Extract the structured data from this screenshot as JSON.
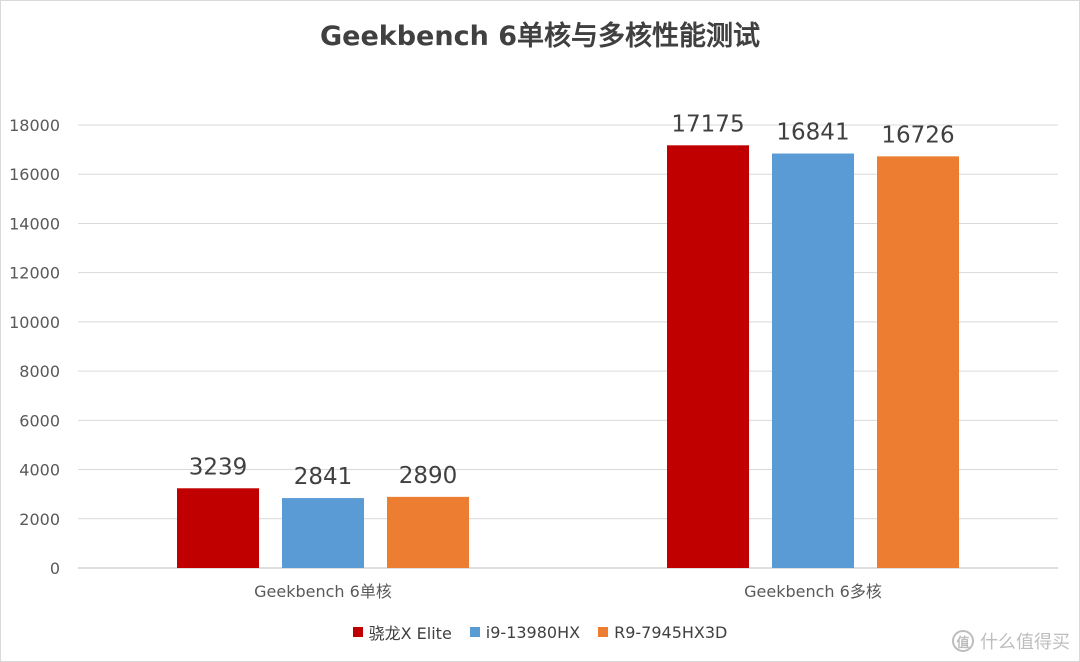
{
  "chart_data": {
    "type": "bar",
    "title": "Geekbench 6单核与多核性能测试",
    "categories": [
      "Geekbench 6单核",
      "Geekbench 6多核"
    ],
    "series": [
      {
        "name": "骁龙X Elite",
        "color": "#c00000",
        "values": [
          3239,
          17175
        ]
      },
      {
        "name": "i9-13980HX",
        "color": "#5b9bd5",
        "values": [
          2841,
          16841
        ]
      },
      {
        "name": "R9-7945HX3D",
        "color": "#ed7d31",
        "values": [
          2890,
          16726
        ]
      }
    ],
    "yticks": [
      0,
      2000,
      4000,
      6000,
      8000,
      10000,
      12000,
      14000,
      16000,
      18000
    ],
    "ylim": [
      0,
      18000
    ],
    "xlabel": "",
    "ylabel": "",
    "grid": true,
    "legend": "bottom"
  },
  "watermark": {
    "icon_text": "值",
    "text": "什么值得买"
  }
}
